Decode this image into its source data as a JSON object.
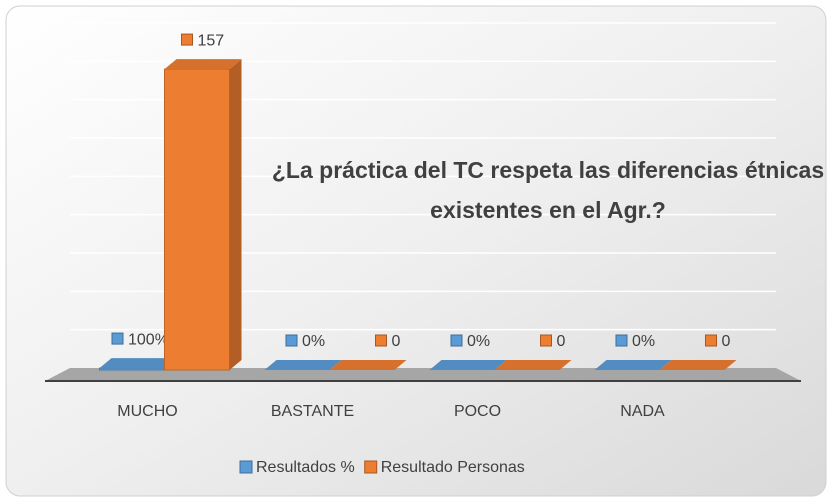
{
  "chart_data": {
    "type": "bar3d",
    "title": "¿La práctica del TC  respeta las diferencias étnicas existentes en el Agr.?",
    "categories": [
      "MUCHO",
      "BASTANTE",
      "POCO",
      "NADA"
    ],
    "series": [
      {
        "name": "Resultados %",
        "color": "#5b9bd5",
        "values": [
          1,
          0,
          0,
          0
        ],
        "value_labels": [
          "100%",
          "0%",
          "0%",
          "0%"
        ]
      },
      {
        "name": "Resultado Personas",
        "color": "#ed7d31",
        "values": [
          157,
          0,
          0,
          0
        ]
      }
    ],
    "ylim": [
      0,
      180
    ],
    "yticks": [
      0,
      20,
      40,
      60,
      80,
      100,
      120,
      140,
      160,
      180
    ],
    "grid": true,
    "legend": "bottom"
  }
}
